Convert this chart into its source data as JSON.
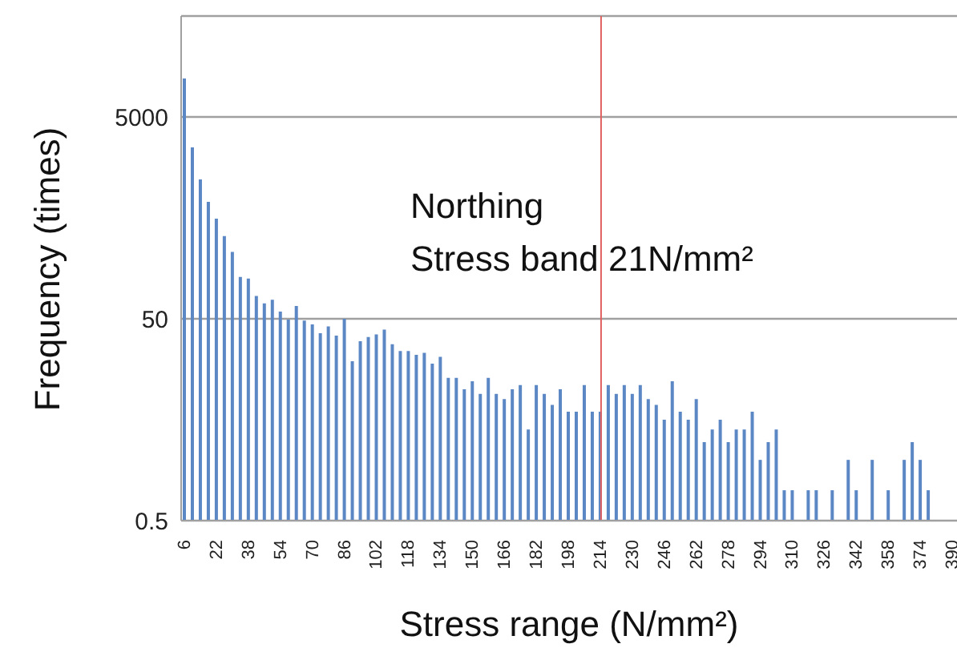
{
  "chart_data": {
    "type": "bar",
    "xlabel": "Stress range (N/mm²)",
    "ylabel": "Frequency (times)",
    "annotations": [
      "Northing",
      "Stress band 21N/mm²"
    ],
    "categories": [
      "6",
      null,
      null,
      null,
      "22",
      null,
      null,
      null,
      "38",
      null,
      null,
      null,
      "54",
      null,
      null,
      null,
      "70",
      null,
      null,
      null,
      "86",
      null,
      null,
      null,
      "102",
      null,
      null,
      null,
      "118",
      null,
      null,
      null,
      "134",
      null,
      null,
      null,
      "150",
      null,
      null,
      null,
      "166",
      null,
      null,
      null,
      "182",
      null,
      null,
      null,
      "198",
      null,
      null,
      null,
      "214",
      null,
      null,
      null,
      "230",
      null,
      null,
      null,
      "246",
      null,
      null,
      null,
      "262",
      null,
      null,
      null,
      "278",
      null,
      null,
      null,
      "294",
      null,
      null,
      null,
      "310",
      null,
      null,
      null,
      "326",
      null,
      null,
      null,
      "342",
      null,
      null,
      null,
      "358",
      null,
      null,
      null,
      "374",
      null,
      null,
      null,
      "390"
    ],
    "values": [
      12000,
      2500,
      1200,
      720,
      490,
      330,
      230,
      130,
      125,
      84,
      71,
      77,
      59,
      49,
      67,
      48,
      44,
      36,
      42,
      34,
      50,
      19,
      30,
      33,
      35,
      39,
      28,
      24,
      24,
      22,
      23,
      18,
      21,
      13,
      13,
      10,
      12,
      9,
      13,
      9,
      8,
      10,
      11,
      4,
      11,
      9,
      7,
      10,
      6,
      6,
      11,
      6,
      6,
      11,
      9,
      11,
      9,
      11,
      8,
      7,
      5,
      12,
      6,
      5,
      8,
      3,
      4,
      5,
      3,
      4,
      4,
      6,
      2,
      3,
      4,
      1,
      1,
      null,
      1,
      1,
      null,
      1,
      null,
      2,
      1,
      null,
      2,
      null,
      1,
      null,
      2,
      3,
      2,
      1,
      null,
      null,
      null
    ],
    "color": "#5b87c5",
    "log": "y",
    "ylim": [
      0.5,
      50000
    ],
    "yticks": [
      0.5,
      50,
      5000
    ],
    "grid": "y",
    "ref_lines": [
      {
        "axis": "x",
        "value": "214",
        "color": "#e06060"
      }
    ]
  }
}
